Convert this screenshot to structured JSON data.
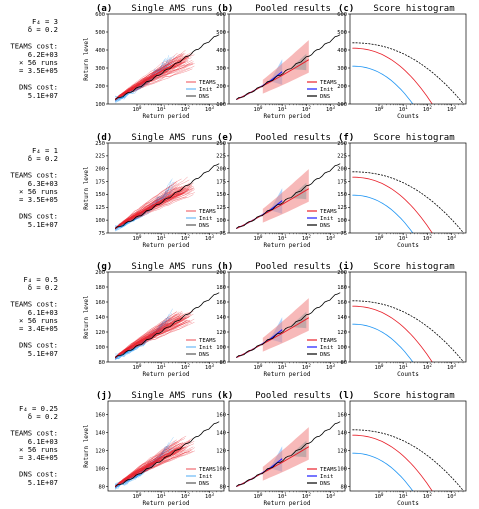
{
  "figure": {
    "colors": {
      "teams": "#e8202a",
      "init": "#2196f3",
      "dns": "#000000",
      "pooled_teams": "#1a1aff"
    }
  },
  "rows": [
    {
      "label_lines": [
        "F₄ = 3",
        "δ = 0.2",
        "",
        "TEAMS cost:",
        "6.2E+03",
        "× 56 runs",
        "= 3.5E+05",
        "",
        "DNS cost:",
        "5.1E+07"
      ]
    },
    {
      "label_lines": [
        "F₄ = 1",
        "δ = 0.2",
        "",
        "TEAMS cost:",
        "6.3E+03",
        "× 56 runs",
        "= 3.5E+05",
        "",
        "DNS cost:",
        "5.1E+07"
      ]
    },
    {
      "label_lines": [
        "F₄ = 0.5",
        "δ = 0.2",
        "",
        "TEAMS cost:",
        "6.1E+03",
        "× 56 runs",
        "= 3.4E+05",
        "",
        "DNS cost:",
        "5.1E+07"
      ]
    },
    {
      "label_lines": [
        "F₄ = 0.25",
        "δ = 0.2",
        "",
        "TEAMS cost:",
        "6.1E+03",
        "× 56 runs",
        "= 3.4E+05",
        "",
        "DNS cost:",
        "5.1E+07"
      ]
    }
  ],
  "chart_data": [
    {
      "panel": "(a)",
      "title": "Single AMS runs",
      "type": "line",
      "xlabel": "Return period",
      "ylabel": "Return level",
      "xscale": "log",
      "yticks": [
        100,
        200,
        300,
        400,
        500,
        600
      ],
      "ylim": [
        100,
        600
      ],
      "legend": [
        "TEAMS",
        "Init",
        "DNS"
      ],
      "legend_loc": "lower-right"
    },
    {
      "panel": "(b)",
      "title": "Pooled results",
      "type": "line",
      "xlabel": "Return period",
      "xscale": "log",
      "yticks": [
        100,
        200,
        300,
        400,
        500,
        600
      ],
      "ylim": [
        100,
        600
      ],
      "legend": [
        "TEAMS",
        "Init",
        "DNS"
      ],
      "legend_loc": "lower-right"
    },
    {
      "panel": "(c)",
      "title": "Score histogram",
      "type": "line",
      "xlabel": "Counts",
      "xscale": "log",
      "yticks": [
        100,
        200,
        300,
        400,
        500,
        600
      ],
      "ylim": [
        100,
        600
      ]
    },
    {
      "panel": "(d)",
      "title": "Single AMS runs",
      "type": "line",
      "xlabel": "Return period",
      "ylabel": "Return level",
      "xscale": "log",
      "yticks": [
        75,
        100,
        125,
        150,
        175,
        200,
        225,
        250
      ],
      "ylim": [
        75,
        250
      ],
      "legend": [
        "TEAMS",
        "Init",
        "DNS"
      ],
      "legend_loc": "lower-right"
    },
    {
      "panel": "(e)",
      "title": "Pooled results",
      "type": "line",
      "xlabel": "Return period",
      "xscale": "log",
      "yticks": [
        75,
        100,
        125,
        150,
        175,
        200,
        225,
        250
      ],
      "ylim": [
        75,
        250
      ],
      "legend": [
        "TEAMS",
        "Init",
        "DNS"
      ],
      "legend_loc": "lower-right"
    },
    {
      "panel": "(f)",
      "title": "Score histogram",
      "type": "line",
      "xlabel": "Counts",
      "xscale": "log",
      "yticks": [
        75,
        100,
        125,
        150,
        175,
        200,
        225,
        250
      ],
      "ylim": [
        75,
        250
      ]
    },
    {
      "panel": "(g)",
      "title": "Single AMS runs",
      "type": "line",
      "xlabel": "Return period",
      "ylabel": "Return level",
      "xscale": "log",
      "yticks": [
        80,
        100,
        120,
        140,
        160,
        180,
        200
      ],
      "ylim": [
        80,
        200
      ],
      "legend": [
        "TEAMS",
        "Init",
        "DNS"
      ],
      "legend_loc": "lower-right"
    },
    {
      "panel": "(h)",
      "title": "Pooled results",
      "type": "line",
      "xlabel": "Return period",
      "xscale": "log",
      "yticks": [
        80,
        100,
        120,
        140,
        160,
        180,
        200
      ],
      "ylim": [
        80,
        200
      ],
      "legend": [
        "TEAMS",
        "Init",
        "DNS"
      ],
      "legend_loc": "lower-right"
    },
    {
      "panel": "(i)",
      "title": "Score histogram",
      "type": "line",
      "xlabel": "Counts",
      "xscale": "log",
      "yticks": [
        80,
        100,
        120,
        140,
        160,
        180,
        200
      ],
      "ylim": [
        80,
        200
      ]
    },
    {
      "panel": "(j)",
      "title": "Single AMS runs",
      "type": "line",
      "xlabel": "Return period",
      "ylabel": "Return level",
      "xscale": "log",
      "yticks": [
        80,
        100,
        120,
        140,
        160
      ],
      "ylim": [
        75,
        175
      ],
      "legend": [
        "TEAMS",
        "Init",
        "DNS"
      ],
      "legend_loc": "lower-right"
    },
    {
      "panel": "(k)",
      "title": "Pooled results",
      "type": "line",
      "xlabel": "Return period",
      "xscale": "log",
      "yticks": [
        80,
        100,
        120,
        140,
        160
      ],
      "ylim": [
        75,
        175
      ],
      "legend": [
        "TEAMS",
        "Init",
        "DNS"
      ],
      "legend_loc": "lower-right"
    },
    {
      "panel": "(l)",
      "title": "Score histogram",
      "type": "line",
      "xlabel": "Counts",
      "xscale": "log",
      "yticks": [
        80,
        100,
        120,
        140,
        160
      ],
      "ylim": [
        75,
        175
      ]
    }
  ]
}
